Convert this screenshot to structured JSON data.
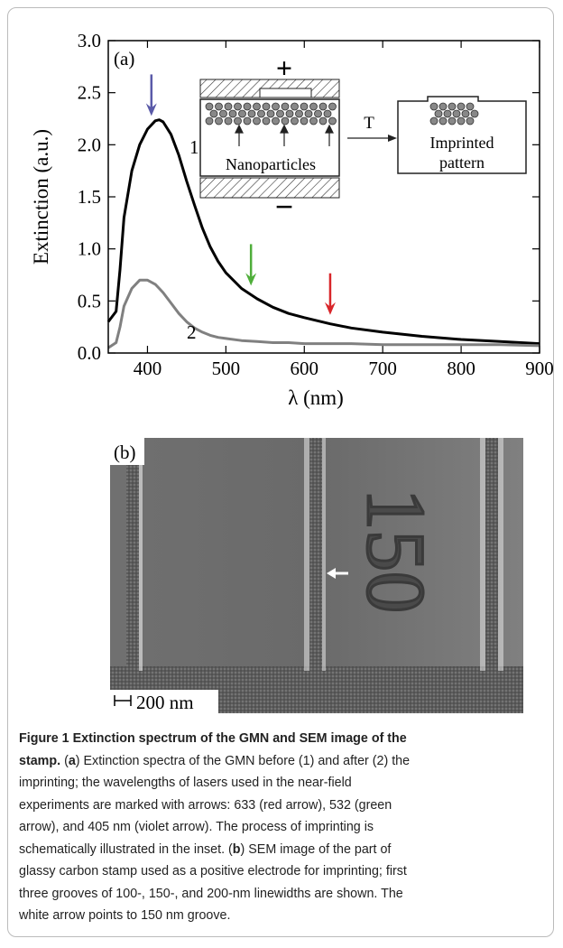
{
  "chart_data": {
    "type": "line",
    "panel_label": "(a)",
    "x_label": "λ (nm)",
    "y_label": "Extinction (a.u.)",
    "x": [
      350,
      360,
      365,
      370,
      380,
      390,
      400,
      410,
      415,
      420,
      430,
      440,
      450,
      460,
      470,
      480,
      490,
      500,
      520,
      540,
      560,
      580,
      600,
      633,
      660,
      700,
      750,
      800,
      850,
      900
    ],
    "series": [
      {
        "name": "1",
        "color": "#000000",
        "values": [
          0.3,
          0.4,
          0.8,
          1.3,
          1.75,
          2.0,
          2.15,
          2.23,
          2.24,
          2.22,
          2.1,
          1.9,
          1.65,
          1.42,
          1.2,
          1.02,
          0.88,
          0.77,
          0.62,
          0.52,
          0.44,
          0.38,
          0.34,
          0.28,
          0.24,
          0.2,
          0.16,
          0.13,
          0.11,
          0.09
        ]
      },
      {
        "name": "2",
        "color": "#808080",
        "values": [
          0.05,
          0.1,
          0.25,
          0.45,
          0.62,
          0.7,
          0.7,
          0.66,
          0.62,
          0.58,
          0.48,
          0.38,
          0.3,
          0.24,
          0.2,
          0.17,
          0.15,
          0.14,
          0.12,
          0.11,
          0.1,
          0.1,
          0.09,
          0.09,
          0.09,
          0.08,
          0.08,
          0.08,
          0.08,
          0.07
        ]
      }
    ],
    "arrows": [
      {
        "x": 405,
        "color": "#5a5aa8"
      },
      {
        "x": 532,
        "color": "#4fae3a"
      },
      {
        "x": 633,
        "color": "#d8262a"
      }
    ],
    "xlim": [
      350,
      900
    ],
    "xticks": [
      400,
      500,
      600,
      700,
      800,
      900
    ],
    "ylim": [
      0,
      3
    ],
    "yticks": [
      {
        "value": 0,
        "label": "0.0"
      },
      0.5,
      {
        "value": 1,
        "label": "1.0"
      },
      1.5,
      {
        "value": 2,
        "label": "2.0"
      },
      2.5,
      {
        "value": 3,
        "label": "3.0"
      }
    ],
    "inset": {
      "plus": "+",
      "minus": "−",
      "left_label": "Nanoparticles",
      "arrow_label": "T",
      "right_label": [
        "Imprinted",
        "pattern"
      ]
    }
  },
  "panel_b": {
    "label": "(b)",
    "number": "150",
    "scale_bar": "200 nm"
  },
  "caption": {
    "lines": [
      [
        "Figure 1 Extinction spectrum of the GMN and SEM image of the"
      ],
      [
        "stamp.",
        " (",
        "a",
        ") Extinction spectra of the GMN before (1) and after (2) the"
      ],
      [
        "imprinting; the wavelengths of lasers used in the near-field"
      ],
      [
        "experiments are marked with arrows: 633 (red arrow), 532 (green"
      ],
      [
        "arrow), and 405 nm (violet arrow). The process of imprinting is"
      ],
      [
        "schematically illustrated in the inset. (",
        "b",
        ") SEM image of the part of"
      ],
      [
        "glassy carbon stamp used as a positive electrode for imprinting; first"
      ],
      [
        "three grooves of 100-, 150-, and 200-nm linewidths are shown. The"
      ],
      [
        "white arrow points to 150 nm groove."
      ]
    ]
  }
}
